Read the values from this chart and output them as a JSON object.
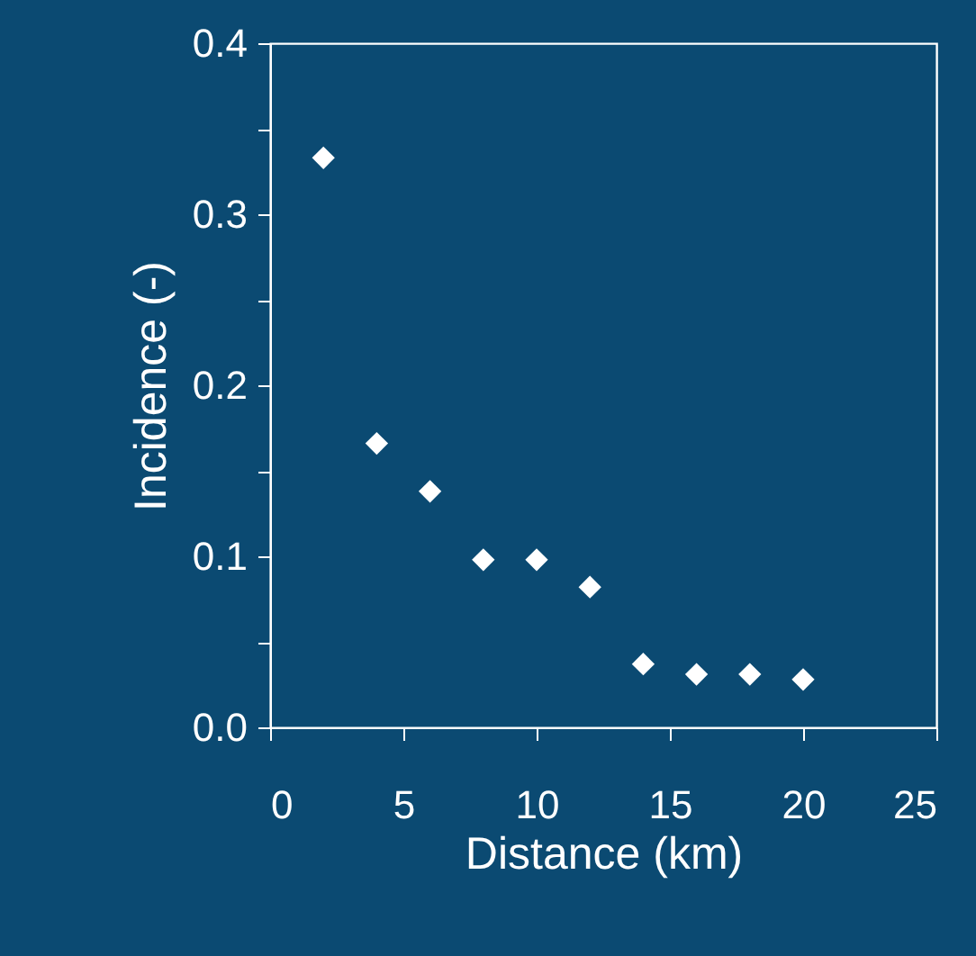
{
  "chart_data": {
    "type": "scatter",
    "xlabel": "Distance (km)",
    "ylabel": "Incidence (-)",
    "x": [
      2,
      4,
      6,
      8,
      10,
      12,
      14,
      16,
      18,
      20
    ],
    "series": [
      {
        "color": "#ffffff",
        "values": [
          0.333,
          0.166,
          0.138,
          0.098,
          0.098,
          0.082,
          0.037,
          0.031,
          0.031,
          0.028
        ]
      }
    ],
    "xlim": [
      0,
      25
    ],
    "xticks": [
      0,
      5,
      10,
      15,
      20,
      25
    ],
    "ylim": [
      0,
      0.4
    ],
    "yticks": [
      {
        "value": 0,
        "label": "0.0"
      },
      {
        "value": 0.05,
        "label": null
      },
      {
        "value": 0.1,
        "label": "0.1"
      },
      {
        "value": 0.15,
        "label": null
      },
      {
        "value": 0.2,
        "label": "0.2"
      },
      {
        "value": 0.25,
        "label": null
      },
      {
        "value": 0.3,
        "label": "0.3"
      },
      {
        "value": 0.35,
        "label": null
      },
      {
        "value": 0.4,
        "label": "0.4"
      }
    ],
    "marker": "diamond",
    "grid": false,
    "legend": false
  }
}
